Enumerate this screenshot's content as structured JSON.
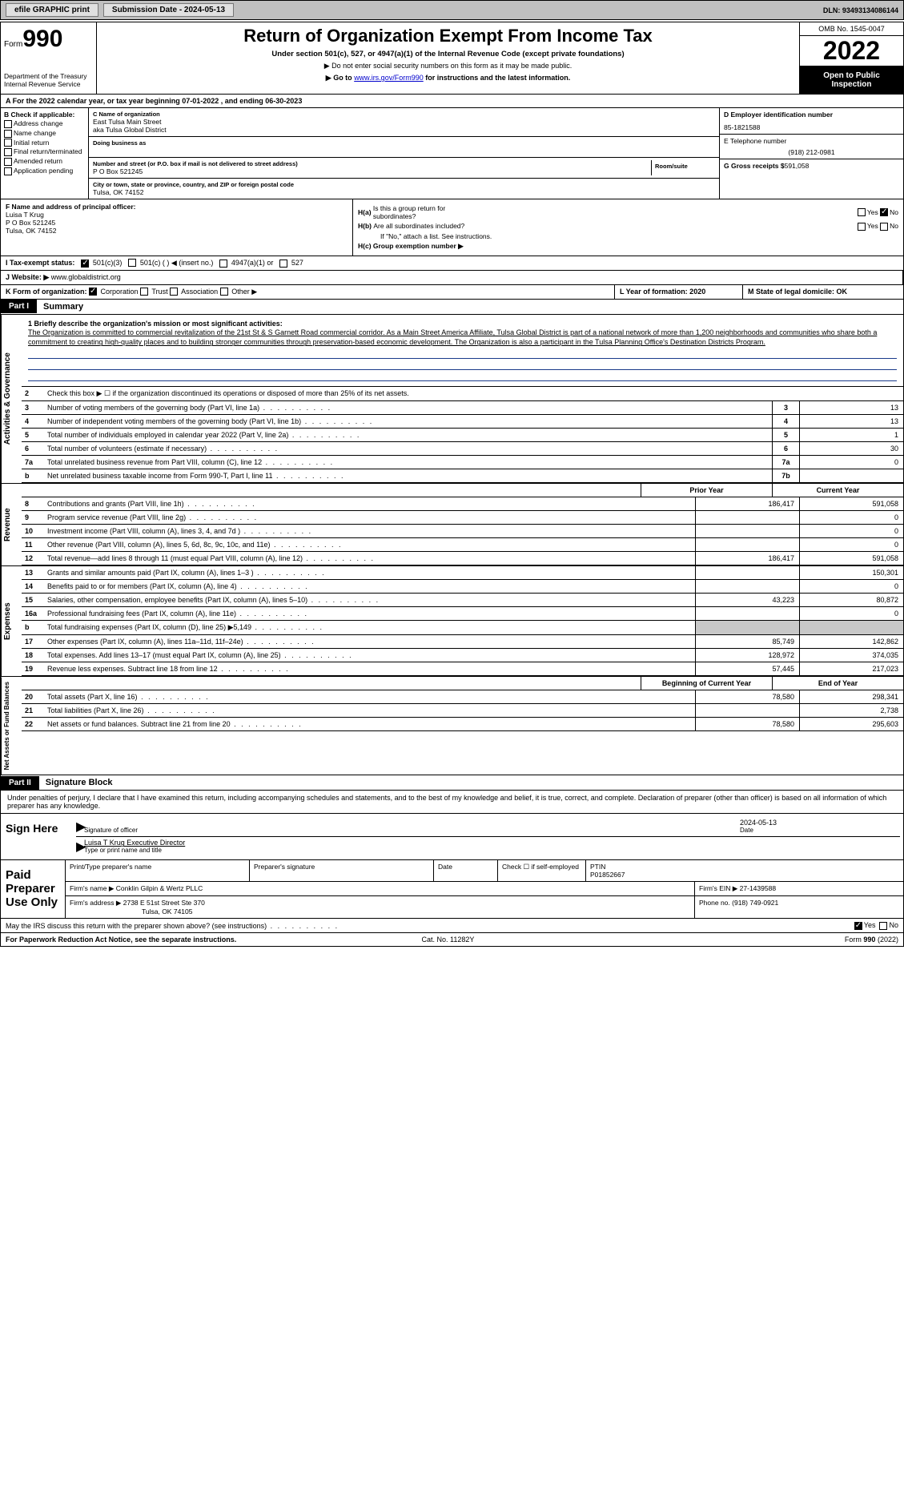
{
  "topbar": {
    "efile": "efile GRAPHIC print",
    "sub_label": "Submission Date - 2024-05-13",
    "dln": "DLN: 93493134086144"
  },
  "header": {
    "form_word": "Form",
    "form_num": "990",
    "dept": "Department of the Treasury",
    "irs": "Internal Revenue Service",
    "title": "Return of Organization Exempt From Income Tax",
    "sub": "Under section 501(c), 527, or 4947(a)(1) of the Internal Revenue Code (except private foundations)",
    "note1": "▶ Do not enter social security numbers on this form as it may be made public.",
    "note2_a": "▶ Go to ",
    "note2_link": "www.irs.gov/Form990",
    "note2_b": " for instructions and the latest information.",
    "omb": "OMB No. 1545-0047",
    "year": "2022",
    "open": "Open to Public Inspection"
  },
  "a": "A For the 2022 calendar year, or tax year beginning 07-01-2022    , and ending 06-30-2023",
  "b": {
    "label": "B Check if applicable:",
    "items": [
      "Address change",
      "Name change",
      "Initial return",
      "Final return/terminated",
      "Amended return",
      "Application pending"
    ]
  },
  "c": {
    "name_lbl": "C Name of organization",
    "name1": "East Tulsa Main Street",
    "name2": "aka Tulsa Global District",
    "dba_lbl": "Doing business as",
    "addr_lbl": "Number and street (or P.O. box if mail is not delivered to street address)",
    "room_lbl": "Room/suite",
    "addr": "P O Box 521245",
    "city_lbl": "City or town, state or province, country, and ZIP or foreign postal code",
    "city": "Tulsa, OK  74152"
  },
  "d": {
    "ein_lbl": "D Employer identification number",
    "ein": "85-1821588",
    "tel_lbl": "E Telephone number",
    "tel": "(918) 212-0981",
    "gross_lbl": "G Gross receipts $",
    "gross": "591,058"
  },
  "f": {
    "lbl": "F  Name and address of principal officer:",
    "name": "Luisa T Krug",
    "addr1": "P O Box 521245",
    "addr2": "Tulsa, OK  74152"
  },
  "h": {
    "ha": "H(a)  Is this a group return for subordinates?",
    "hb": "H(b)  Are all subordinates included?",
    "hb2": "If \"No,\" attach a list. See instructions.",
    "hc": "H(c)  Group exemption number ▶"
  },
  "i": {
    "lbl": "I   Tax-exempt status:",
    "o1": "501(c)(3)",
    "o2": "501(c) (   ) ◀ (insert no.)",
    "o3": "4947(a)(1) or",
    "o4": "527"
  },
  "j": {
    "lbl": "J   Website: ▶",
    "val": " www.globaldistrict.org"
  },
  "k": {
    "lbl": "K Form of organization:",
    "o1": "Corporation",
    "o2": "Trust",
    "o3": "Association",
    "o4": "Other ▶"
  },
  "l": "L Year of formation: 2020",
  "m": "M State of legal domicile: OK",
  "part1": {
    "tag": "Part I",
    "title": "Summary"
  },
  "side": {
    "ag": "Activities & Governance",
    "rev": "Revenue",
    "exp": "Expenses",
    "net": "Net Assets or Fund Balances"
  },
  "q1": {
    "lbl": "1  Briefly describe the organization's mission or most significant activities:",
    "ans": "The Organization is committed to commercial revitalization of the 21st St & S Garnett Road commercial corridor. As a Main Street America Affiliate, Tulsa Global District is part of a national network of more than 1,200 neighborhoods and communities who share both a commitment to creating high-quality places and to building stronger communities through preservation-based economic development. The Organization is also a participant in the Tulsa Planning Office's Destination Districts Program."
  },
  "q2": "Check this box ▶ ☐  if the organization discontinued its operations or disposed of more than 25% of its net assets.",
  "lines_ag": [
    {
      "n": "3",
      "t": "Number of voting members of the governing body (Part VI, line 1a)",
      "b": "3",
      "v": "13"
    },
    {
      "n": "4",
      "t": "Number of independent voting members of the governing body (Part VI, line 1b)",
      "b": "4",
      "v": "13"
    },
    {
      "n": "5",
      "t": "Total number of individuals employed in calendar year 2022 (Part V, line 2a)",
      "b": "5",
      "v": "1"
    },
    {
      "n": "6",
      "t": "Total number of volunteers (estimate if necessary)",
      "b": "6",
      "v": "30"
    },
    {
      "n": "7a",
      "t": "Total unrelated business revenue from Part VIII, column (C), line 12",
      "b": "7a",
      "v": "0"
    },
    {
      "n": "b",
      "t": "Net unrelated business taxable income from Form 990-T, Part I, line 11",
      "b": "7b",
      "v": ""
    }
  ],
  "colhdr": {
    "prior": "Prior Year",
    "curr": "Current Year"
  },
  "lines_rev": [
    {
      "n": "8",
      "t": "Contributions and grants (Part VIII, line 1h)",
      "p": "186,417",
      "c": "591,058"
    },
    {
      "n": "9",
      "t": "Program service revenue (Part VIII, line 2g)",
      "p": "",
      "c": "0"
    },
    {
      "n": "10",
      "t": "Investment income (Part VIII, column (A), lines 3, 4, and 7d )",
      "p": "",
      "c": "0"
    },
    {
      "n": "11",
      "t": "Other revenue (Part VIII, column (A), lines 5, 6d, 8c, 9c, 10c, and 11e)",
      "p": "",
      "c": "0"
    },
    {
      "n": "12",
      "t": "Total revenue—add lines 8 through 11 (must equal Part VIII, column (A), line 12)",
      "p": "186,417",
      "c": "591,058"
    }
  ],
  "lines_exp": [
    {
      "n": "13",
      "t": "Grants and similar amounts paid (Part IX, column (A), lines 1–3 )",
      "p": "",
      "c": "150,301"
    },
    {
      "n": "14",
      "t": "Benefits paid to or for members (Part IX, column (A), line 4)",
      "p": "",
      "c": "0"
    },
    {
      "n": "15",
      "t": "Salaries, other compensation, employee benefits (Part IX, column (A), lines 5–10)",
      "p": "43,223",
      "c": "80,872"
    },
    {
      "n": "16a",
      "t": "Professional fundraising fees (Part IX, column (A), line 11e)",
      "p": "",
      "c": "0"
    },
    {
      "n": "b",
      "t": "Total fundraising expenses (Part IX, column (D), line 25) ▶5,149",
      "p": "shade",
      "c": "shade"
    },
    {
      "n": "17",
      "t": "Other expenses (Part IX, column (A), lines 11a–11d, 11f–24e)",
      "p": "85,749",
      "c": "142,862"
    },
    {
      "n": "18",
      "t": "Total expenses. Add lines 13–17 (must equal Part IX, column (A), line 25)",
      "p": "128,972",
      "c": "374,035"
    },
    {
      "n": "19",
      "t": "Revenue less expenses. Subtract line 18 from line 12",
      "p": "57,445",
      "c": "217,023"
    }
  ],
  "colhdr2": {
    "prior": "Beginning of Current Year",
    "curr": "End of Year"
  },
  "lines_net": [
    {
      "n": "20",
      "t": "Total assets (Part X, line 16)",
      "p": "78,580",
      "c": "298,341"
    },
    {
      "n": "21",
      "t": "Total liabilities (Part X, line 26)",
      "p": "",
      "c": "2,738"
    },
    {
      "n": "22",
      "t": "Net assets or fund balances. Subtract line 21 from line 20",
      "p": "78,580",
      "c": "295,603"
    }
  ],
  "part2": {
    "tag": "Part II",
    "title": "Signature Block"
  },
  "sig": {
    "intro": "Under penalties of perjury, I declare that I have examined this return, including accompanying schedules and statements, and to the best of my knowledge and belief, it is true, correct, and complete. Declaration of preparer (other than officer) is based on all information of which preparer has any knowledge.",
    "here": "Sign Here",
    "sig_lbl": "Signature of officer",
    "date": "2024-05-13",
    "date_lbl": "Date",
    "name": "Luisa T Krug  Executive Director",
    "name_lbl": "Type or print name and title"
  },
  "prep": {
    "title": "Paid Preparer Use Only",
    "h1": "Print/Type preparer's name",
    "h2": "Preparer's signature",
    "h3": "Date",
    "h4": "Check ☐ if self-employed",
    "ptin_lbl": "PTIN",
    "ptin": "P01852667",
    "firm_lbl": "Firm's name    ▶",
    "firm": "Conklin Gilpin & Wertz PLLC",
    "ein_lbl": "Firm's EIN ▶",
    "ein": "27-1439588",
    "addr_lbl": "Firm's address ▶",
    "addr1": "2738 E 51st Street Ste 370",
    "addr2": "Tulsa, OK  74105",
    "ph_lbl": "Phone no.",
    "ph": "(918) 749-0921"
  },
  "may": "May the IRS discuss this return with the preparer shown above? (see instructions)",
  "bottom": {
    "l": "For Paperwork Reduction Act Notice, see the separate instructions.",
    "m": "Cat. No. 11282Y",
    "r": "Form 990 (2022)"
  },
  "yn": {
    "yes": "Yes",
    "no": "No"
  }
}
